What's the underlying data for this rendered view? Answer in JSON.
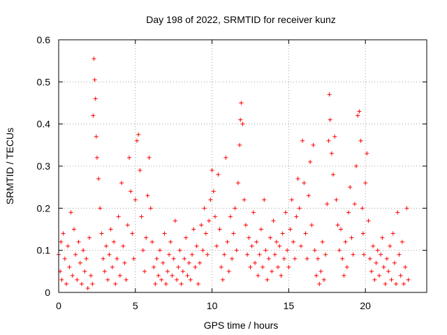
{
  "chart_data": {
    "type": "scatter",
    "title": "Day 198 of 2022, SRMTID for receiver kunz",
    "xlabel": "GPS time / hours",
    "ylabel": "SRMTID / TECUs",
    "xlim": [
      0,
      24
    ],
    "ylim": [
      0,
      0.6
    ],
    "x_ticks": [
      0,
      5,
      10,
      15,
      20
    ],
    "x_tick_labels": [
      "0",
      "5",
      "10",
      "15",
      "20"
    ],
    "y_ticks": [
      0,
      0.1,
      0.2,
      0.3,
      0.4,
      0.5,
      0.6
    ],
    "y_tick_labels": [
      "0",
      "0.1",
      "0.2",
      "0.3",
      "0.4",
      "0.5",
      "0.6"
    ],
    "grid": true,
    "marker": "plus",
    "color": "#ff0000",
    "series": [
      {
        "name": "SRMTID",
        "x": [
          0.0,
          0.1,
          0.15,
          0.2,
          0.3,
          0.4,
          0.5,
          0.6,
          0.7,
          0.8,
          0.9,
          1.0,
          1.1,
          1.2,
          1.3,
          1.4,
          1.5,
          1.6,
          1.7,
          1.8,
          1.9,
          2.0,
          2.1,
          2.2,
          2.25,
          2.3,
          2.35,
          2.4,
          2.45,
          2.5,
          2.6,
          2.7,
          2.8,
          2.9,
          3.0,
          3.1,
          3.2,
          3.3,
          3.4,
          3.5,
          3.6,
          3.7,
          3.8,
          3.9,
          4.0,
          4.1,
          4.2,
          4.3,
          4.4,
          4.5,
          4.6,
          4.7,
          4.8,
          4.9,
          5.0,
          5.1,
          5.2,
          5.3,
          5.4,
          5.5,
          5.6,
          5.7,
          5.8,
          5.9,
          6.0,
          6.1,
          6.2,
          6.3,
          6.4,
          6.5,
          6.6,
          6.7,
          6.8,
          6.9,
          7.0,
          7.1,
          7.2,
          7.3,
          7.4,
          7.5,
          7.6,
          7.7,
          7.8,
          7.9,
          8.0,
          8.1,
          8.2,
          8.3,
          8.4,
          8.5,
          8.6,
          8.7,
          8.8,
          8.9,
          9.0,
          9.1,
          9.2,
          9.3,
          9.4,
          9.5,
          9.6,
          9.7,
          9.8,
          9.9,
          10.0,
          10.1,
          10.2,
          10.3,
          10.4,
          10.5,
          10.6,
          10.7,
          10.8,
          10.9,
          11.0,
          11.1,
          11.2,
          11.3,
          11.4,
          11.5,
          11.6,
          11.7,
          11.8,
          11.85,
          11.9,
          12.0,
          12.1,
          12.2,
          12.3,
          12.4,
          12.5,
          12.6,
          12.7,
          12.8,
          12.9,
          13.0,
          13.1,
          13.2,
          13.3,
          13.4,
          13.5,
          13.6,
          13.7,
          13.8,
          13.9,
          14.0,
          14.1,
          14.2,
          14.3,
          14.4,
          14.5,
          14.6,
          14.7,
          14.8,
          14.9,
          15.0,
          15.1,
          15.2,
          15.3,
          15.4,
          15.5,
          15.6,
          15.7,
          15.8,
          15.9,
          16.0,
          16.1,
          16.2,
          16.3,
          16.4,
          16.5,
          16.6,
          16.7,
          16.8,
          16.9,
          17.0,
          17.1,
          17.2,
          17.3,
          17.4,
          17.5,
          17.6,
          17.65,
          17.7,
          17.8,
          17.9,
          18.0,
          18.1,
          18.2,
          18.3,
          18.4,
          18.5,
          18.6,
          18.7,
          18.8,
          18.9,
          19.0,
          19.1,
          19.2,
          19.3,
          19.4,
          19.5,
          19.6,
          19.7,
          19.8,
          19.85,
          19.9,
          20.0,
          20.1,
          20.2,
          20.3,
          20.4,
          20.5,
          20.6,
          20.7,
          20.8,
          20.9,
          21.0,
          21.1,
          21.2,
          21.3,
          21.4,
          21.5,
          21.6,
          21.7,
          21.8,
          21.9,
          22.0,
          22.1,
          22.2,
          22.3,
          22.4,
          22.5,
          22.6,
          22.7,
          22.8
        ],
        "y": [
          0.09,
          0.05,
          0.12,
          0.03,
          0.14,
          0.08,
          0.02,
          0.11,
          0.06,
          0.19,
          0.04,
          0.15,
          0.09,
          0.03,
          0.12,
          0.07,
          0.02,
          0.1,
          0.05,
          0.08,
          0.01,
          0.13,
          0.04,
          0.02,
          0.42,
          0.555,
          0.505,
          0.46,
          0.37,
          0.32,
          0.27,
          0.2,
          0.14,
          0.08,
          0.05,
          0.11,
          0.03,
          0.09,
          0.15,
          0.06,
          0.12,
          0.02,
          0.08,
          0.18,
          0.04,
          0.26,
          0.11,
          0.07,
          0.03,
          0.16,
          0.32,
          0.24,
          0.14,
          0.08,
          0.22,
          0.36,
          0.375,
          0.29,
          0.18,
          0.1,
          0.05,
          0.13,
          0.23,
          0.32,
          0.2,
          0.12,
          0.06,
          0.02,
          0.08,
          0.04,
          0.1,
          0.03,
          0.07,
          0.14,
          0.02,
          0.05,
          0.09,
          0.12,
          0.04,
          0.08,
          0.17,
          0.03,
          0.06,
          0.1,
          0.02,
          0.05,
          0.08,
          0.13,
          0.04,
          0.07,
          0.03,
          0.09,
          0.15,
          0.06,
          0.11,
          0.02,
          0.07,
          0.16,
          0.1,
          0.2,
          0.14,
          0.09,
          0.17,
          0.22,
          0.29,
          0.24,
          0.18,
          0.11,
          0.28,
          0.15,
          0.06,
          0.03,
          0.09,
          0.32,
          0.12,
          0.05,
          0.18,
          0.08,
          0.14,
          0.2,
          0.1,
          0.26,
          0.35,
          0.41,
          0.45,
          0.4,
          0.22,
          0.16,
          0.09,
          0.13,
          0.06,
          0.11,
          0.19,
          0.07,
          0.12,
          0.04,
          0.09,
          0.15,
          0.06,
          0.22,
          0.1,
          0.03,
          0.08,
          0.13,
          0.05,
          0.17,
          0.09,
          0.12,
          0.06,
          0.11,
          0.04,
          0.14,
          0.08,
          0.19,
          0.1,
          0.06,
          0.15,
          0.22,
          0.12,
          0.08,
          0.18,
          0.27,
          0.2,
          0.11,
          0.36,
          0.26,
          0.14,
          0.08,
          0.23,
          0.31,
          0.16,
          0.35,
          0.1,
          0.04,
          0.08,
          0.02,
          0.05,
          0.12,
          0.03,
          0.09,
          0.21,
          0.36,
          0.47,
          0.41,
          0.33,
          0.28,
          0.37,
          0.22,
          0.16,
          0.1,
          0.15,
          0.08,
          0.04,
          0.12,
          0.06,
          0.19,
          0.25,
          0.13,
          0.09,
          0.21,
          0.3,
          0.42,
          0.43,
          0.36,
          0.2,
          0.14,
          0.09,
          0.26,
          0.33,
          0.17,
          0.08,
          0.05,
          0.11,
          0.03,
          0.07,
          0.1,
          0.04,
          0.09,
          0.13,
          0.06,
          0.02,
          0.08,
          0.05,
          0.11,
          0.03,
          0.14,
          0.07,
          0.02,
          0.19,
          0.09,
          0.04,
          0.12,
          0.02,
          0.06,
          0.2,
          0.03
        ]
      }
    ]
  }
}
